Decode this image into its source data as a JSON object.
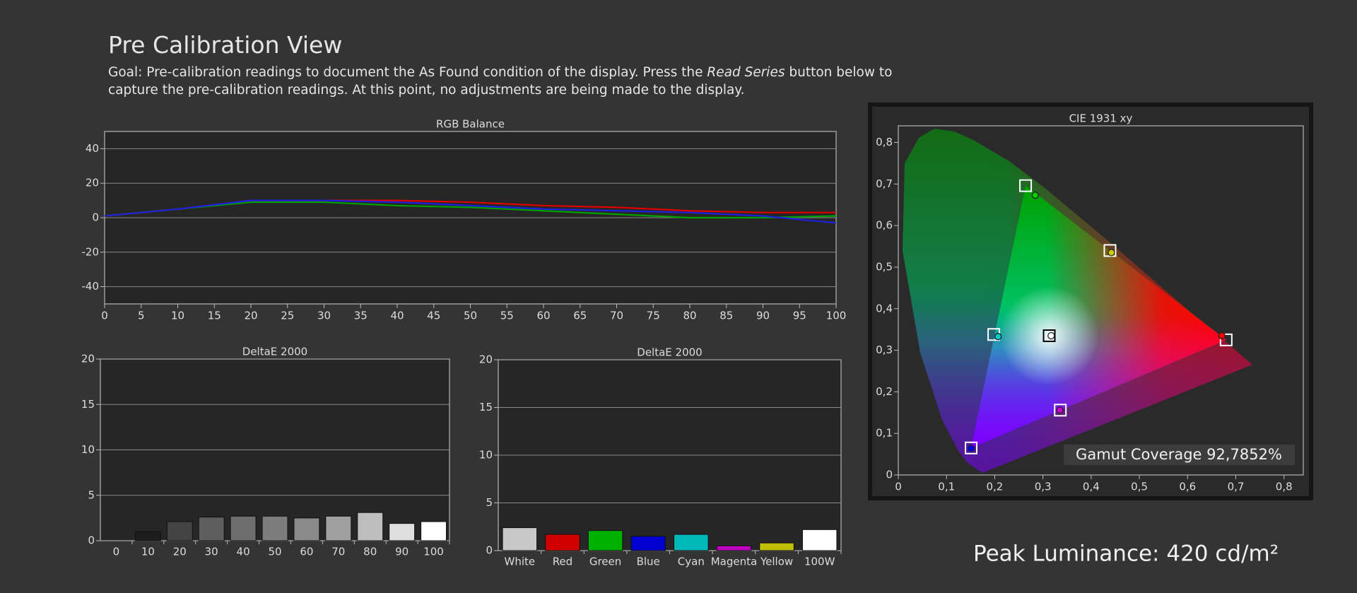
{
  "header": {
    "title": "Pre Calibration View",
    "goal_before": "Goal: Pre-calibration readings to document the As Found condition of the display. Press the ",
    "goal_emphasis": "Read Series",
    "goal_after": " button below to capture the pre-calibration readings. At this point, no adjustments are being made to the display."
  },
  "chart_data": [
    {
      "type": "line",
      "title": "RGB Balance",
      "x": [
        0,
        10,
        20,
        30,
        40,
        50,
        60,
        70,
        80,
        90,
        100
      ],
      "series": [
        {
          "color": "#e00000",
          "values": [
            1,
            5,
            10,
            10,
            10,
            9,
            7,
            6,
            4,
            3,
            3
          ]
        },
        {
          "color": "#00a000",
          "values": [
            1,
            5,
            9,
            9,
            7,
            6,
            4,
            2,
            0,
            0,
            1
          ]
        },
        {
          "color": "#1f1fe0",
          "values": [
            1,
            5,
            10,
            10,
            9,
            7,
            5,
            4,
            3,
            1,
            -3
          ]
        }
      ],
      "xlim": [
        0,
        100
      ],
      "xticks": [
        0,
        5,
        10,
        15,
        20,
        25,
        30,
        35,
        40,
        45,
        50,
        55,
        60,
        65,
        70,
        75,
        80,
        85,
        90,
        95,
        100
      ],
      "ylim": [
        -50,
        50
      ],
      "yticks": [
        -40,
        -20,
        0,
        20,
        40
      ],
      "grid": true
    },
    {
      "type": "bar",
      "title": "DeltaE 2000",
      "categories": [
        "0",
        "10",
        "20",
        "30",
        "40",
        "50",
        "60",
        "70",
        "80",
        "90",
        "100"
      ],
      "values": [
        0,
        1.0,
        2.1,
        2.6,
        2.7,
        2.7,
        2.5,
        2.7,
        3.1,
        1.9,
        2.1
      ],
      "colors": [
        "#000000",
        "#1c1c1c",
        "#444444",
        "#5e5e5e",
        "#6e6e6e",
        "#7c7c7c",
        "#8a8a8a",
        "#a0a0a0",
        "#bdbdbd",
        "#dedede",
        "#ffffff"
      ],
      "ylim": [
        0,
        20
      ],
      "yticks": [
        0,
        5,
        10,
        15,
        20
      ],
      "grid": true
    },
    {
      "type": "bar",
      "title": "DeltaE 2000",
      "categories": [
        "White",
        "Red",
        "Green",
        "Blue",
        "Cyan",
        "Magenta",
        "Yellow",
        "100W"
      ],
      "values": [
        2.4,
        1.7,
        2.1,
        1.5,
        1.7,
        0.5,
        0.8,
        2.2
      ],
      "colors": [
        "#c8c8c8",
        "#d00000",
        "#00b000",
        "#0000d0",
        "#00b8b8",
        "#c000c0",
        "#c0c000",
        "#ffffff"
      ],
      "ylim": [
        0,
        20
      ],
      "yticks": [
        0,
        5,
        10,
        15,
        20
      ],
      "grid": true
    },
    {
      "type": "scatter",
      "title": "CIE 1931 xy",
      "series": [
        {
          "marker": "square",
          "x": [
            0.68,
            0.264,
            0.151,
            0.198,
            0.336,
            0.439,
            0.313
          ],
          "y": [
            0.325,
            0.696,
            0.065,
            0.338,
            0.156,
            0.54,
            0.335
          ],
          "colors": [
            "#ffffff",
            "#ffffff",
            "#ffffff",
            "#ffffff",
            "#ffffff",
            "#ffffff",
            "#000000"
          ]
        },
        {
          "marker": "circle",
          "x": [
            0.671,
            0.284,
            0.151,
            0.207,
            0.335,
            0.442,
            0.317
          ],
          "y": [
            0.335,
            0.673,
            0.064,
            0.333,
            0.156,
            0.535,
            0.335
          ],
          "colors": [
            "#ff0000",
            "#00cc00",
            "#0000ff",
            "#00cccc",
            "#cc00cc",
            "#cccc00",
            "#ffffff"
          ]
        }
      ],
      "xlim": [
        0,
        0.84
      ],
      "ylim": [
        0,
        0.84
      ],
      "xticks": [
        0,
        {
          "value": 0.1,
          "label": "0,1"
        },
        {
          "value": 0.2,
          "label": "0,2"
        },
        {
          "value": 0.3,
          "label": "0,3"
        },
        {
          "value": 0.4,
          "label": "0,4"
        },
        {
          "value": 0.5,
          "label": "0,5"
        },
        {
          "value": 0.6,
          "label": "0,6"
        },
        {
          "value": 0.7,
          "label": "0,7"
        },
        {
          "value": 0.8,
          "label": "0,8"
        }
      ],
      "yticks": [
        0,
        {
          "value": 0.1,
          "label": "0,1"
        },
        {
          "value": 0.2,
          "label": "0,2"
        },
        {
          "value": 0.3,
          "label": "0,3"
        },
        {
          "value": 0.4,
          "label": "0,4"
        },
        {
          "value": 0.5,
          "label": "0,5"
        },
        {
          "value": 0.6,
          "label": "0,6"
        },
        {
          "value": 0.7,
          "label": "0,7"
        },
        {
          "value": 0.8,
          "label": "0,8"
        }
      ],
      "grid": false
    }
  ],
  "summary": {
    "gamut_coverage": "Gamut Coverage 92,7852%",
    "peak_luminance": "Peak Luminance: 420 cd/m²"
  }
}
